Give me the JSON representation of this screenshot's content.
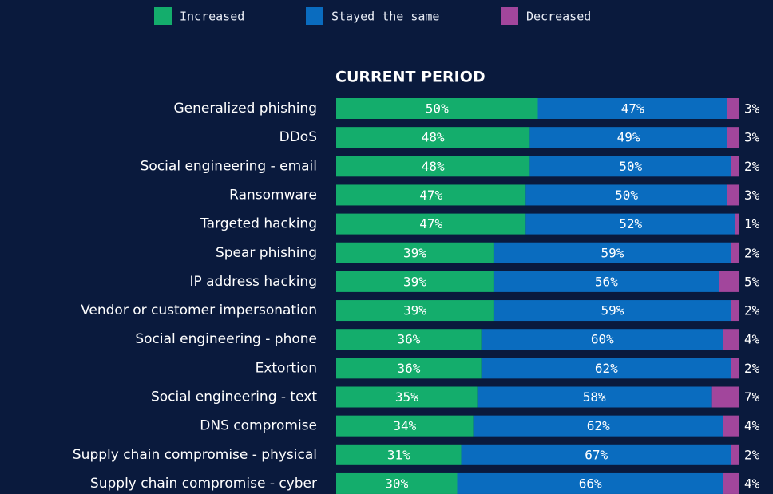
{
  "chart_data": {
    "type": "stacked-bar-horizontal",
    "title": "CURRENT PERIOD",
    "categories": [
      "Generalized phishing",
      "DDoS",
      "Social engineering - email",
      "Ransomware",
      "Targeted hacking",
      "Spear phishing",
      "IP address hacking",
      "Vendor or customer impersonation",
      "Social engineering - phone",
      "Extortion",
      "Social engineering - text",
      "DNS compromise",
      "Supply chain compromise - physical",
      "Supply chain compromise - cyber"
    ],
    "series": [
      {
        "name": "Increased",
        "color": "#14ad6c",
        "values": [
          50,
          48,
          48,
          47,
          47,
          39,
          39,
          39,
          36,
          36,
          35,
          34,
          31,
          30
        ],
        "value_labels": [
          "50%",
          "48%",
          "48%",
          "47%",
          "47%",
          "39%",
          "39%",
          "39%",
          "36%",
          "36%",
          "35%",
          "34%",
          "31%",
          "30%"
        ]
      },
      {
        "name": "Stayed the same",
        "color": "#0a6cbf",
        "values": [
          47,
          49,
          50,
          50,
          52,
          59,
          56,
          59,
          60,
          62,
          58,
          62,
          67,
          66
        ],
        "value_labels": [
          "47%",
          "49%",
          "50%",
          "50%",
          "52%",
          "59%",
          "56%",
          "59%",
          "60%",
          "62%",
          "58%",
          "62%",
          "67%",
          "66%"
        ]
      },
      {
        "name": "Decreased",
        "color": "#a2469c",
        "values": [
          3,
          3,
          2,
          3,
          1,
          2,
          5,
          2,
          4,
          2,
          7,
          4,
          2,
          4
        ],
        "value_labels": [
          "3%",
          "3%",
          "2%",
          "3%",
          "1%",
          "2%",
          "5%",
          "2%",
          "4%",
          "2%",
          "7%",
          "4%",
          "2%",
          "4%"
        ]
      }
    ],
    "legend": "top"
  }
}
